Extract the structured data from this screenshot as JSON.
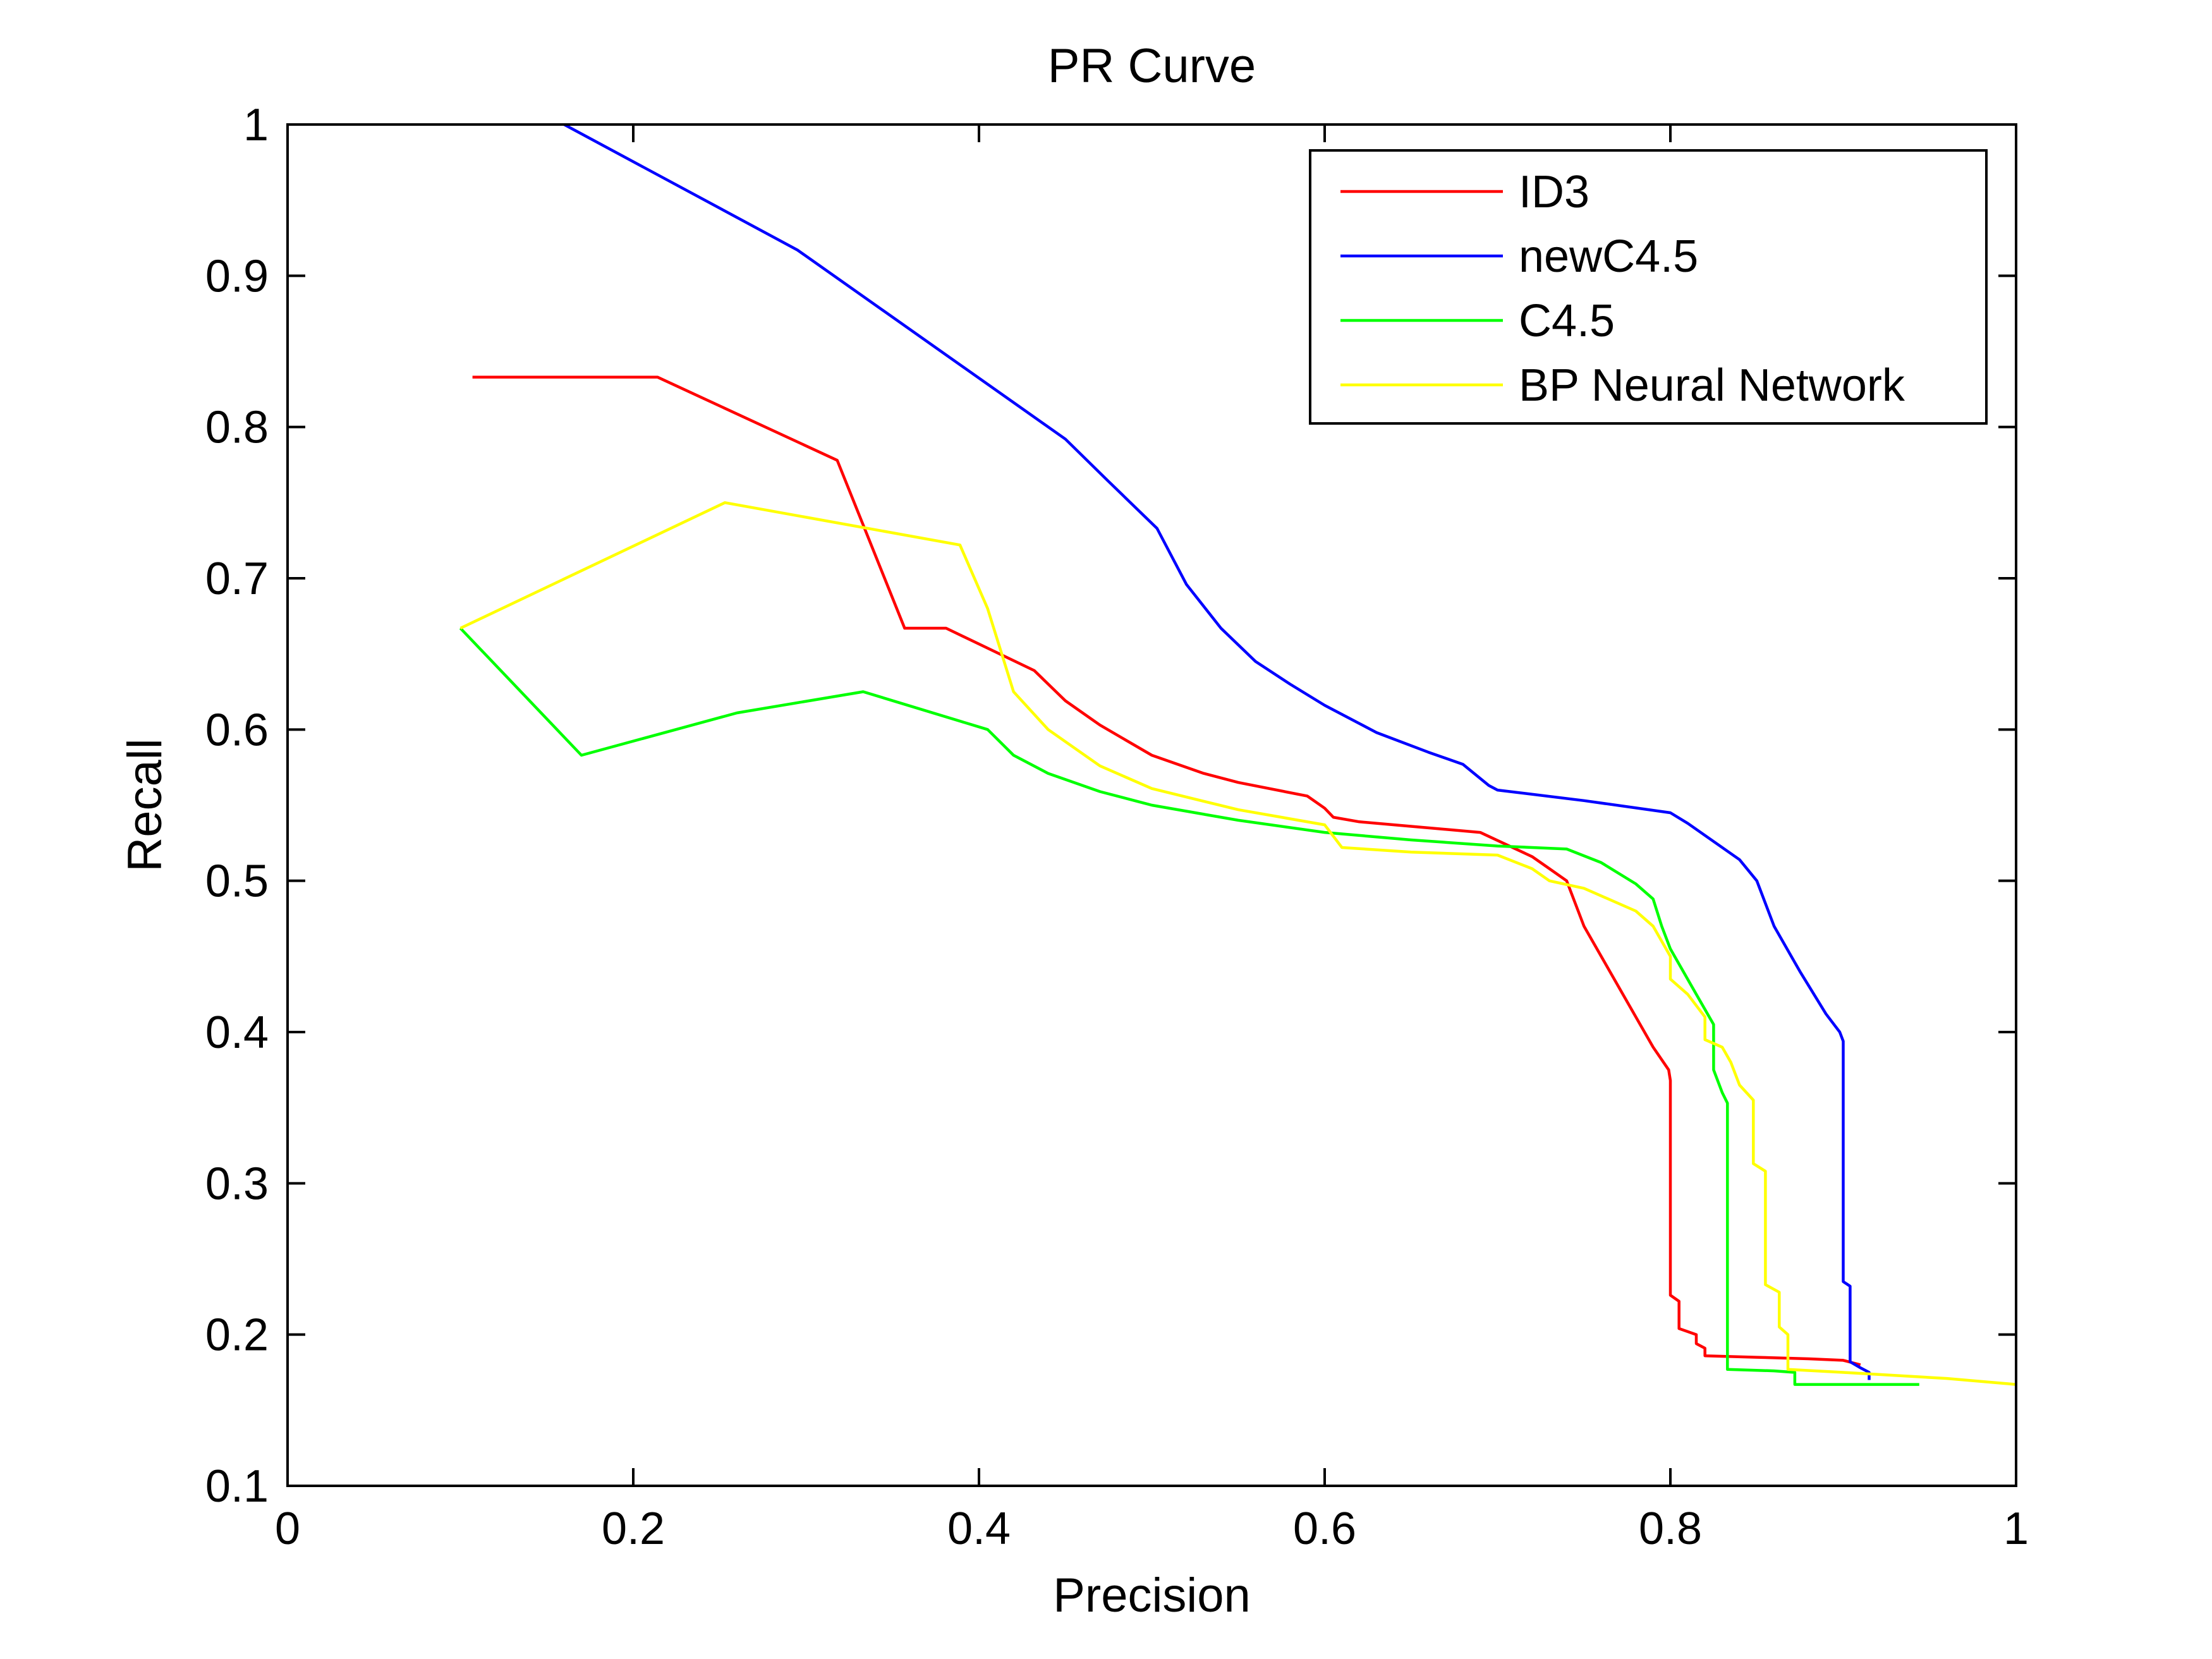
{
  "chart_data": {
    "type": "line",
    "title": "PR Curve",
    "xlabel": "Precision",
    "ylabel": "Recall",
    "xlim": [
      0,
      1
    ],
    "ylim": [
      0.1,
      1
    ],
    "xticks": [
      0,
      0.2,
      0.4,
      0.6,
      0.8,
      1
    ],
    "xtick_labels": [
      "0",
      "0.2",
      "0.4",
      "0.6",
      "0.8",
      "1"
    ],
    "yticks": [
      0.1,
      0.2,
      0.3,
      0.4,
      0.5,
      0.6,
      0.7,
      0.8,
      0.9,
      1
    ],
    "ytick_labels": [
      "0.1",
      "0.2",
      "0.3",
      "0.4",
      "0.5",
      "0.6",
      "0.7",
      "0.8",
      "0.9",
      "1"
    ],
    "grid": false,
    "legend_position": "top-right",
    "series": [
      {
        "name": "ID3",
        "color": "#ff0000",
        "points": [
          [
            0.107,
            0.833
          ],
          [
            0.214,
            0.833
          ],
          [
            0.318,
            0.778
          ],
          [
            0.357,
            0.667
          ],
          [
            0.381,
            0.667
          ],
          [
            0.432,
            0.639
          ],
          [
            0.45,
            0.619
          ],
          [
            0.47,
            0.603
          ],
          [
            0.5,
            0.583
          ],
          [
            0.53,
            0.571
          ],
          [
            0.55,
            0.565
          ],
          [
            0.59,
            0.556
          ],
          [
            0.6,
            0.548
          ],
          [
            0.605,
            0.542
          ],
          [
            0.62,
            0.539
          ],
          [
            0.65,
            0.536
          ],
          [
            0.69,
            0.532
          ],
          [
            0.72,
            0.516
          ],
          [
            0.73,
            0.508
          ],
          [
            0.74,
            0.5
          ],
          [
            0.75,
            0.47
          ],
          [
            0.77,
            0.43
          ],
          [
            0.79,
            0.39
          ],
          [
            0.799,
            0.375
          ],
          [
            0.8,
            0.368
          ],
          [
            0.8,
            0.226
          ],
          [
            0.805,
            0.222
          ],
          [
            0.805,
            0.204
          ],
          [
            0.815,
            0.2
          ],
          [
            0.815,
            0.194
          ],
          [
            0.82,
            0.191
          ],
          [
            0.82,
            0.186
          ],
          [
            0.85,
            0.185
          ],
          [
            0.88,
            0.184
          ],
          [
            0.9,
            0.183
          ],
          [
            0.91,
            0.18
          ]
        ]
      },
      {
        "name": "newC4.5",
        "color": "#0000ff",
        "points": [
          [
            0.16,
            1.0
          ],
          [
            0.295,
            0.917
          ],
          [
            0.45,
            0.792
          ],
          [
            0.475,
            0.764
          ],
          [
            0.503,
            0.733
          ],
          [
            0.52,
            0.696
          ],
          [
            0.54,
            0.667
          ],
          [
            0.56,
            0.645
          ],
          [
            0.58,
            0.63
          ],
          [
            0.6,
            0.616
          ],
          [
            0.63,
            0.598
          ],
          [
            0.66,
            0.585
          ],
          [
            0.68,
            0.577
          ],
          [
            0.695,
            0.563
          ],
          [
            0.7,
            0.56
          ],
          [
            0.75,
            0.553
          ],
          [
            0.8,
            0.545
          ],
          [
            0.81,
            0.538
          ],
          [
            0.84,
            0.514
          ],
          [
            0.85,
            0.5
          ],
          [
            0.86,
            0.47
          ],
          [
            0.875,
            0.44
          ],
          [
            0.89,
            0.412
          ],
          [
            0.898,
            0.4
          ],
          [
            0.9,
            0.394
          ],
          [
            0.9,
            0.235
          ],
          [
            0.904,
            0.232
          ],
          [
            0.904,
            0.182
          ],
          [
            0.91,
            0.178
          ],
          [
            0.915,
            0.175
          ],
          [
            0.915,
            0.17
          ]
        ]
      },
      {
        "name": "C4.5",
        "color": "#00ff00",
        "points": [
          [
            0.1,
            0.667
          ],
          [
            0.17,
            0.583
          ],
          [
            0.26,
            0.611
          ],
          [
            0.333,
            0.625
          ],
          [
            0.405,
            0.6
          ],
          [
            0.42,
            0.583
          ],
          [
            0.44,
            0.571
          ],
          [
            0.47,
            0.559
          ],
          [
            0.5,
            0.55
          ],
          [
            0.55,
            0.54
          ],
          [
            0.6,
            0.532
          ],
          [
            0.65,
            0.527
          ],
          [
            0.7,
            0.523
          ],
          [
            0.74,
            0.521
          ],
          [
            0.76,
            0.512
          ],
          [
            0.78,
            0.498
          ],
          [
            0.79,
            0.488
          ],
          [
            0.795,
            0.47
          ],
          [
            0.8,
            0.455
          ],
          [
            0.815,
            0.425
          ],
          [
            0.825,
            0.405
          ],
          [
            0.825,
            0.375
          ],
          [
            0.83,
            0.36
          ],
          [
            0.833,
            0.353
          ],
          [
            0.833,
            0.177
          ],
          [
            0.86,
            0.176
          ],
          [
            0.872,
            0.175
          ],
          [
            0.872,
            0.167
          ],
          [
            0.944,
            0.167
          ]
        ]
      },
      {
        "name": "BP Neural Network",
        "color": "#ffff00",
        "points": [
          [
            0.1,
            0.667
          ],
          [
            0.253,
            0.75
          ],
          [
            0.389,
            0.722
          ],
          [
            0.405,
            0.68
          ],
          [
            0.42,
            0.625
          ],
          [
            0.44,
            0.6
          ],
          [
            0.47,
            0.576
          ],
          [
            0.5,
            0.561
          ],
          [
            0.55,
            0.547
          ],
          [
            0.6,
            0.537
          ],
          [
            0.61,
            0.522
          ],
          [
            0.65,
            0.519
          ],
          [
            0.7,
            0.517
          ],
          [
            0.72,
            0.508
          ],
          [
            0.73,
            0.5
          ],
          [
            0.75,
            0.495
          ],
          [
            0.78,
            0.48
          ],
          [
            0.79,
            0.47
          ],
          [
            0.8,
            0.45
          ],
          [
            0.8,
            0.435
          ],
          [
            0.81,
            0.425
          ],
          [
            0.82,
            0.41
          ],
          [
            0.82,
            0.395
          ],
          [
            0.83,
            0.39
          ],
          [
            0.835,
            0.38
          ],
          [
            0.84,
            0.365
          ],
          [
            0.848,
            0.355
          ],
          [
            0.848,
            0.313
          ],
          [
            0.855,
            0.308
          ],
          [
            0.855,
            0.233
          ],
          [
            0.863,
            0.228
          ],
          [
            0.863,
            0.205
          ],
          [
            0.868,
            0.2
          ],
          [
            0.868,
            0.177
          ],
          [
            0.9,
            0.175
          ],
          [
            0.96,
            0.171
          ],
          [
            1.0,
            0.167
          ]
        ]
      }
    ]
  }
}
